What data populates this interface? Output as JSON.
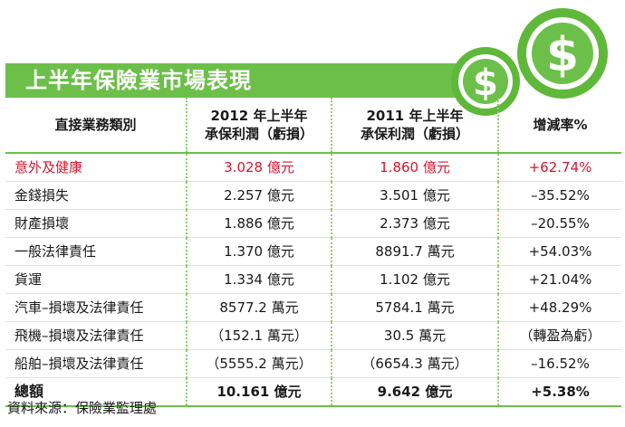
{
  "title": "上半年保險業市場表現",
  "header": {
    "category": "直接業務類別",
    "col_2012_line1": "2012 年上半年",
    "col_2012_line2": "承保利潤（虧損）",
    "col_2011_line1": "2011 年上半年",
    "col_2011_line2": "承保利潤（虧損）",
    "col_change": "增減率%"
  },
  "rows": [
    {
      "category": "意外及健康",
      "y2012": "3.028 億元",
      "y2011": "1.860 億元",
      "change": "+62.74%"
    },
    {
      "category": "金錢損失",
      "y2012": "2.257 億元",
      "y2011": "3.501 億元",
      "change": "–35.52%"
    },
    {
      "category": "財產損壞",
      "y2012": "1.886 億元",
      "y2011": "2.373 億元",
      "change": "–20.55%"
    },
    {
      "category": "一般法律責任",
      "y2012": "1.370 億元",
      "y2011": "8891.7 萬元",
      "change": "+54.03%"
    },
    {
      "category": "貨運",
      "y2012": "1.334 億元",
      "y2011": "1.102 億元",
      "change": "+21.04%"
    },
    {
      "category": "汽車–損壞及法律責任",
      "y2012": "8577.2 萬元",
      "y2011": "5784.1 萬元",
      "change": "+48.29%"
    },
    {
      "category": "飛機–損壞及法律責任",
      "y2012": "（152.1 萬元）",
      "y2011": "30.5 萬元",
      "change": "（轉盈為虧）"
    },
    {
      "category": "船舶–損壞及法律責任",
      "y2012": "（5555.2 萬元）",
      "y2011": "（6654.3 萬元）",
      "change": "–16.52%"
    }
  ],
  "total": {
    "category": "總額",
    "y2012": "10.161 億元",
    "y2011": "9.642 億元",
    "change": "+5.38%"
  },
  "source": "資料來源：保險業監理處",
  "colors": {
    "accent_green": "#6cc04a",
    "highlight_red": "#d7162d"
  },
  "icons": [
    "dollar-coin-icon",
    "dollar-coin-icon"
  ]
}
